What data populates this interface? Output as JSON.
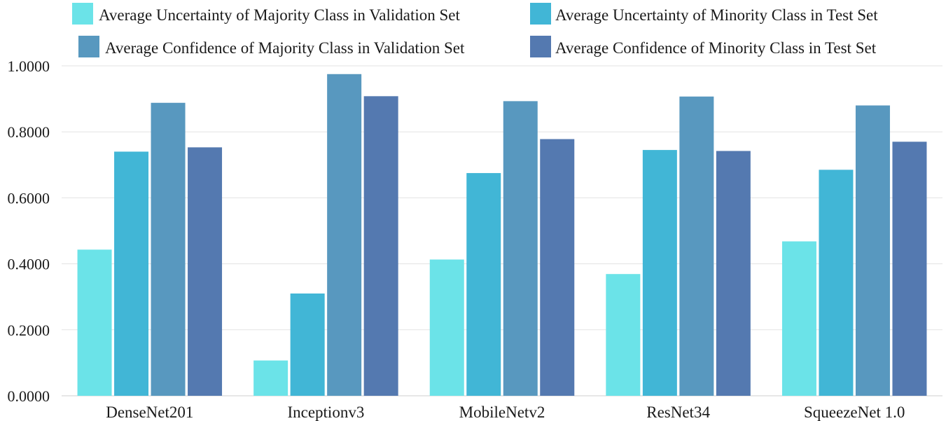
{
  "chart_data": {
    "type": "bar",
    "title": "",
    "xlabel": "",
    "ylabel": "",
    "ylim": [
      0,
      1
    ],
    "yticks": [
      "0.0000",
      "0.2000",
      "0.4000",
      "0.6000",
      "0.8000",
      "1.0000"
    ],
    "grid": true,
    "legend_position": "top",
    "categories": [
      "DenseNet201",
      "Inceptionv3",
      "MobileNetv2",
      "ResNet34",
      "SqueezeNet 1.0"
    ],
    "series": [
      {
        "name": "Average Uncertainty of Majority Class in Validation Set",
        "color": "#6be3e8",
        "values": [
          0.443,
          0.107,
          0.413,
          0.369,
          0.468
        ]
      },
      {
        "name": "Average Uncertainty of Minority Class in Test Set",
        "color": "#41b6d6",
        "values": [
          0.74,
          0.31,
          0.675,
          0.745,
          0.685
        ]
      },
      {
        "name": "Average Confidence of Majority Class in Validation Set",
        "color": "#5898bf",
        "values": [
          0.888,
          0.975,
          0.893,
          0.907,
          0.88
        ]
      },
      {
        "name": "Average Confidence of Minority Class in Test Set",
        "color": "#5479b0",
        "values": [
          0.753,
          0.908,
          0.778,
          0.742,
          0.77
        ]
      }
    ]
  }
}
